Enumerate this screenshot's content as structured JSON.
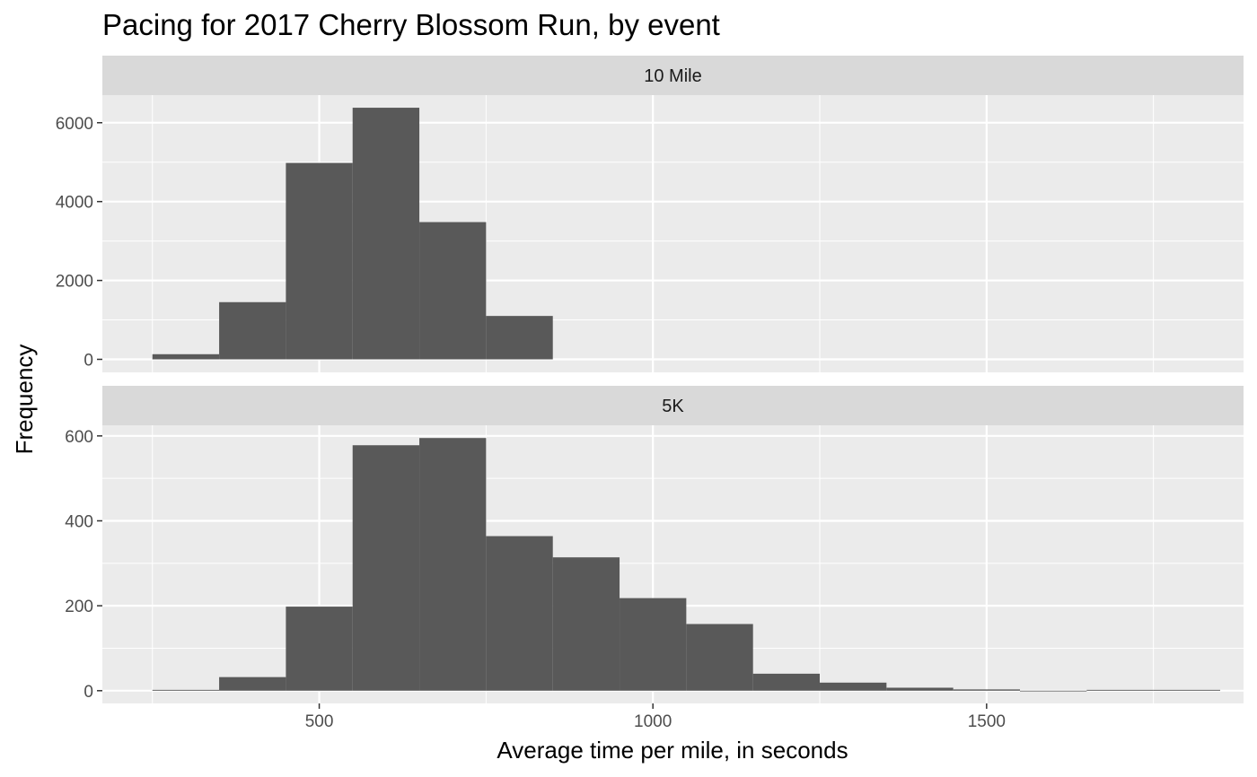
{
  "chart_data": {
    "type": "bar",
    "title": "Pacing for 2017 Cherry Blossom Run, by event",
    "xlabel": "Average time per mile, in seconds",
    "ylabel": "Frequency",
    "xlim": [
      175,
      1885
    ],
    "x_ticks": [
      500,
      1000,
      1500
    ],
    "x_tick_labels": [
      "500",
      "1000",
      "1500"
    ],
    "bin_width": 100,
    "grid": true,
    "colors": {
      "bar": "#595959",
      "panel": "#ebebeb",
      "strip": "#d9d9d9",
      "grid": "#ffffff"
    },
    "facets": [
      {
        "label": "10 Mile",
        "ylim": [
          -330,
          6700
        ],
        "y_ticks": [
          0,
          2000,
          4000,
          6000
        ],
        "y_tick_labels": [
          "0",
          "2000",
          "4000",
          "6000"
        ],
        "bins": [
          {
            "x0": 250,
            "x1": 350,
            "count": 130
          },
          {
            "x0": 350,
            "x1": 450,
            "count": 1450
          },
          {
            "x0": 450,
            "x1": 550,
            "count": 4980
          },
          {
            "x0": 550,
            "x1": 650,
            "count": 6380
          },
          {
            "x0": 650,
            "x1": 750,
            "count": 3480
          },
          {
            "x0": 750,
            "x1": 850,
            "count": 1100
          }
        ]
      },
      {
        "label": "5K",
        "ylim": [
          -30,
          625
        ],
        "y_ticks": [
          0,
          200,
          400,
          600
        ],
        "y_tick_labels": [
          "0",
          "200",
          "400",
          "600"
        ],
        "bins": [
          {
            "x0": 250,
            "x1": 350,
            "count": 2
          },
          {
            "x0": 350,
            "x1": 450,
            "count": 32
          },
          {
            "x0": 450,
            "x1": 550,
            "count": 198
          },
          {
            "x0": 550,
            "x1": 650,
            "count": 578
          },
          {
            "x0": 650,
            "x1": 750,
            "count": 595
          },
          {
            "x0": 750,
            "x1": 850,
            "count": 364
          },
          {
            "x0": 850,
            "x1": 950,
            "count": 314
          },
          {
            "x0": 950,
            "x1": 1050,
            "count": 218
          },
          {
            "x0": 1050,
            "x1": 1150,
            "count": 157
          },
          {
            "x0": 1150,
            "x1": 1250,
            "count": 40
          },
          {
            "x0": 1250,
            "x1": 1350,
            "count": 19
          },
          {
            "x0": 1350,
            "x1": 1450,
            "count": 7
          },
          {
            "x0": 1450,
            "x1": 1550,
            "count": 3
          },
          {
            "x0": 1550,
            "x1": 1650,
            "count": 0
          },
          {
            "x0": 1650,
            "x1": 1750,
            "count": 2
          },
          {
            "x0": 1750,
            "x1": 1850,
            "count": 2
          }
        ]
      }
    ]
  }
}
